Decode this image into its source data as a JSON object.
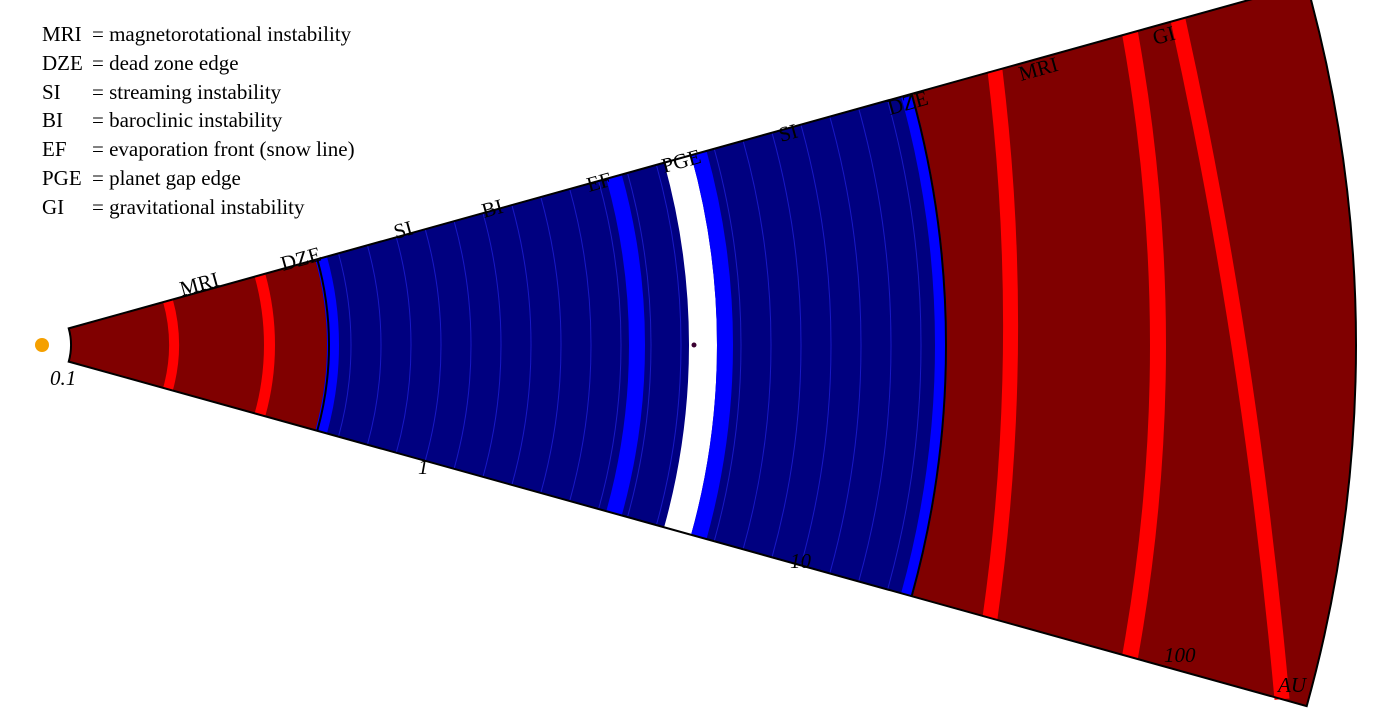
{
  "legend": [
    {
      "abbr": "MRI",
      "text": "= magnetorotational instability"
    },
    {
      "abbr": "DZE",
      "text": "= dead zone edge"
    },
    {
      "abbr": "SI",
      "text": "= streaming instability"
    },
    {
      "abbr": "BI",
      "text": "= baroclinic instability"
    },
    {
      "abbr": "EF",
      "text": "= evaporation front (snow line)"
    },
    {
      "abbr": "PGE",
      "text": "= planet gap edge"
    },
    {
      "abbr": "GI",
      "text": "= gravitational instability"
    }
  ],
  "axis": {
    "unit": "AU",
    "ticks": [
      "0.1",
      "1",
      "10",
      "100"
    ]
  },
  "zones": {
    "labels": [
      "MRI",
      "DZE",
      "SI",
      "BI",
      "EF",
      "PGE",
      "SI",
      "DZE",
      "MRI",
      "GI"
    ]
  },
  "colors": {
    "active_zone": "#800000",
    "dead_zone": "#000080",
    "dead_zone_line": "#2b2bff",
    "band_red": "#ff0000",
    "band_blue": "#0000ff",
    "gap": "#ffffff",
    "star": "#f5a000",
    "planet": "#3a0030"
  }
}
